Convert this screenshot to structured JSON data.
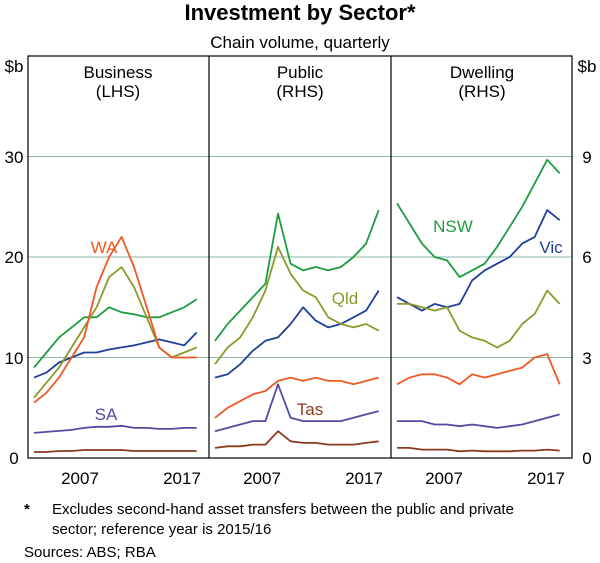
{
  "title": "Investment by Sector*",
  "subtitle": "Chain volume, quarterly",
  "footnote_marker": "*",
  "footnote_line1": "Excludes second-hand asset transfers between the public and private",
  "footnote_line2": "sector; reference year is 2015/16",
  "sources": "Sources: ABS; RBA",
  "colors": {
    "nsw": "#1a9e3e",
    "vic": "#1f3f99",
    "qld": "#8a9a2c",
    "wa": "#ee5a24",
    "sa": "#5b46a3",
    "tas": "#8b3a1e",
    "grid": "#8fb5a8"
  },
  "chart_data": {
    "type": "line",
    "unit_left": "$b",
    "unit_right": "$b",
    "left_axis": {
      "ylim": [
        0,
        40
      ],
      "ticks": [
        "0",
        "10",
        "20",
        "30"
      ]
    },
    "right_axis": {
      "ylim": [
        0,
        12
      ],
      "ticks": [
        "0",
        "3",
        "6",
        "9"
      ]
    },
    "x_ticks": [
      "2007",
      "2017"
    ],
    "grid": true,
    "panels": [
      {
        "title": "Business",
        "axis_label": "(LHS)",
        "axis": "left",
        "series": [
          {
            "key": "nsw",
            "x": [
              2004,
              2005,
              2006,
              2007,
              2008,
              2009,
              2010,
              2011,
              2012,
              2013,
              2014,
              2015,
              2016,
              2017
            ],
            "y": [
              9,
              10.5,
              12,
              13,
              14,
              14,
              15,
              14.5,
              14.3,
              14,
              14,
              14.5,
              15,
              15.8
            ]
          },
          {
            "key": "vic",
            "x": [
              2004,
              2005,
              2006,
              2007,
              2008,
              2009,
              2010,
              2011,
              2012,
              2013,
              2014,
              2015,
              2016,
              2017
            ],
            "y": [
              8,
              8.5,
              9.5,
              10,
              10.5,
              10.5,
              10.8,
              11,
              11.2,
              11.5,
              11.8,
              11.5,
              11.2,
              12.5
            ]
          },
          {
            "key": "qld",
            "x": [
              2004,
              2005,
              2006,
              2007,
              2008,
              2009,
              2010,
              2011,
              2012,
              2013,
              2014,
              2015,
              2016,
              2017
            ],
            "y": [
              6,
              7.5,
              9,
              11,
              13,
              15,
              18,
              19,
              17,
              14,
              11,
              10,
              10.5,
              11
            ]
          },
          {
            "key": "wa",
            "name": "WA",
            "x": [
              2004,
              2005,
              2006,
              2007,
              2008,
              2009,
              2010,
              2011,
              2012,
              2013,
              2014,
              2015,
              2016,
              2017
            ],
            "y": [
              5.5,
              6.5,
              8,
              10,
              12,
              17,
              20,
              22,
              19,
              15,
              11,
              10,
              10,
              10
            ]
          },
          {
            "key": "sa",
            "name": "SA",
            "x": [
              2004,
              2005,
              2006,
              2007,
              2008,
              2009,
              2010,
              2011,
              2012,
              2013,
              2014,
              2015,
              2016,
              2017
            ],
            "y": [
              2.5,
              2.6,
              2.7,
              2.8,
              3.0,
              3.1,
              3.1,
              3.2,
              3.0,
              3.0,
              2.9,
              2.9,
              3.0,
              3.0
            ]
          },
          {
            "key": "tas",
            "x": [
              2004,
              2005,
              2006,
              2007,
              2008,
              2009,
              2010,
              2011,
              2012,
              2013,
              2014,
              2015,
              2016,
              2017
            ],
            "y": [
              0.6,
              0.6,
              0.7,
              0.7,
              0.8,
              0.8,
              0.8,
              0.8,
              0.7,
              0.7,
              0.7,
              0.7,
              0.7,
              0.7
            ]
          }
        ]
      },
      {
        "title": "Public",
        "axis_label": "(RHS)",
        "axis": "right",
        "series": [
          {
            "key": "nsw",
            "x": [
              2004,
              2005,
              2006,
              2007,
              2008,
              2009,
              2010,
              2011,
              2012,
              2013,
              2014,
              2015,
              2016,
              2017
            ],
            "y": [
              3.5,
              4.0,
              4.4,
              4.8,
              5.2,
              7.3,
              5.8,
              5.6,
              5.7,
              5.6,
              5.7,
              6.0,
              6.4,
              7.4
            ]
          },
          {
            "key": "vic",
            "x": [
              2004,
              2005,
              2006,
              2007,
              2008,
              2009,
              2010,
              2011,
              2012,
              2013,
              2014,
              2015,
              2016,
              2017
            ],
            "y": [
              2.4,
              2.5,
              2.8,
              3.2,
              3.5,
              3.6,
              4.0,
              4.5,
              4.1,
              3.9,
              4.0,
              4.2,
              4.4,
              5.0
            ]
          },
          {
            "key": "qld",
            "name": "Qld",
            "x": [
              2004,
              2005,
              2006,
              2007,
              2008,
              2009,
              2010,
              2011,
              2012,
              2013,
              2014,
              2015,
              2016,
              2017
            ],
            "y": [
              2.8,
              3.3,
              3.6,
              4.2,
              5.0,
              6.3,
              5.5,
              5.0,
              4.8,
              4.2,
              4.0,
              3.9,
              4.0,
              3.8
            ]
          },
          {
            "key": "wa",
            "x": [
              2004,
              2005,
              2006,
              2007,
              2008,
              2009,
              2010,
              2011,
              2012,
              2013,
              2014,
              2015,
              2016,
              2017
            ],
            "y": [
              1.2,
              1.5,
              1.7,
              1.9,
              2.0,
              2.3,
              2.4,
              2.3,
              2.4,
              2.3,
              2.3,
              2.2,
              2.3,
              2.4
            ]
          },
          {
            "key": "sa",
            "x": [
              2004,
              2005,
              2006,
              2007,
              2008,
              2009,
              2010,
              2011,
              2012,
              2013,
              2014,
              2015,
              2016,
              2017
            ],
            "y": [
              0.8,
              0.9,
              1.0,
              1.1,
              1.1,
              2.2,
              1.2,
              1.1,
              1.1,
              1.1,
              1.1,
              1.2,
              1.3,
              1.4
            ]
          },
          {
            "key": "tas",
            "name": "Tas",
            "x": [
              2004,
              2005,
              2006,
              2007,
              2008,
              2009,
              2010,
              2011,
              2012,
              2013,
              2014,
              2015,
              2016,
              2017
            ],
            "y": [
              0.3,
              0.35,
              0.35,
              0.4,
              0.4,
              0.8,
              0.5,
              0.45,
              0.45,
              0.4,
              0.4,
              0.4,
              0.45,
              0.5
            ]
          }
        ]
      },
      {
        "title": "Dwelling",
        "axis_label": "(RHS)",
        "axis": "right",
        "series": [
          {
            "key": "nsw",
            "name": "NSW",
            "x": [
              2004,
              2005,
              2006,
              2007,
              2008,
              2009,
              2010,
              2011,
              2012,
              2013,
              2014,
              2015,
              2016,
              2017
            ],
            "y": [
              7.6,
              7.0,
              6.4,
              6.0,
              5.9,
              5.4,
              5.6,
              5.8,
              6.3,
              6.9,
              7.5,
              8.2,
              8.9,
              8.5
            ]
          },
          {
            "key": "vic",
            "name": "Vic",
            "x": [
              2004,
              2005,
              2006,
              2007,
              2008,
              2009,
              2010,
              2011,
              2012,
              2013,
              2014,
              2015,
              2016,
              2017
            ],
            "y": [
              4.8,
              4.6,
              4.4,
              4.6,
              4.5,
              4.6,
              5.3,
              5.6,
              5.8,
              6.0,
              6.4,
              6.6,
              7.4,
              7.1
            ]
          },
          {
            "key": "qld",
            "x": [
              2004,
              2005,
              2006,
              2007,
              2008,
              2009,
              2010,
              2011,
              2012,
              2013,
              2014,
              2015,
              2016,
              2017
            ],
            "y": [
              4.6,
              4.6,
              4.5,
              4.4,
              4.5,
              3.8,
              3.6,
              3.5,
              3.3,
              3.5,
              4.0,
              4.3,
              5.0,
              4.6
            ]
          },
          {
            "key": "wa",
            "x": [
              2004,
              2005,
              2006,
              2007,
              2008,
              2009,
              2010,
              2011,
              2012,
              2013,
              2014,
              2015,
              2016,
              2017
            ],
            "y": [
              2.2,
              2.4,
              2.5,
              2.5,
              2.4,
              2.2,
              2.5,
              2.4,
              2.5,
              2.6,
              2.7,
              3.0,
              3.1,
              2.2
            ]
          },
          {
            "key": "sa",
            "x": [
              2004,
              2005,
              2006,
              2007,
              2008,
              2009,
              2010,
              2011,
              2012,
              2013,
              2014,
              2015,
              2016,
              2017
            ],
            "y": [
              1.1,
              1.1,
              1.1,
              1.0,
              1.0,
              0.95,
              1.0,
              0.95,
              0.9,
              0.95,
              1.0,
              1.1,
              1.2,
              1.3
            ]
          },
          {
            "key": "tas",
            "x": [
              2004,
              2005,
              2006,
              2007,
              2008,
              2009,
              2010,
              2011,
              2012,
              2013,
              2014,
              2015,
              2016,
              2017
            ],
            "y": [
              0.3,
              0.3,
              0.25,
              0.25,
              0.25,
              0.2,
              0.22,
              0.2,
              0.2,
              0.2,
              0.22,
              0.22,
              0.25,
              0.22
            ]
          }
        ]
      }
    ]
  }
}
